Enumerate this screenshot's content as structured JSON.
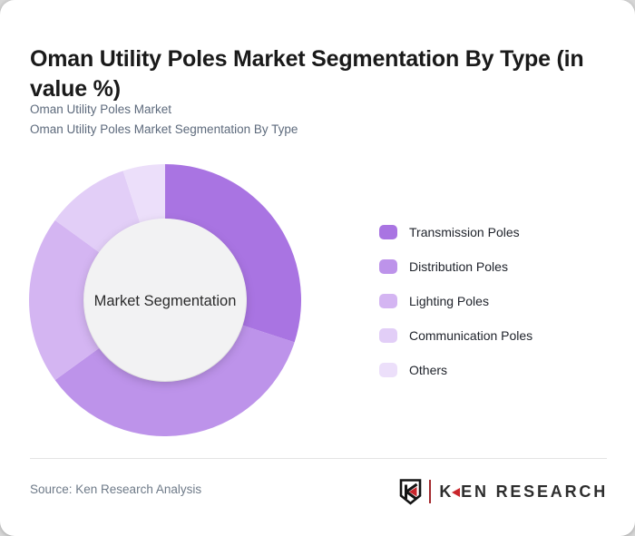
{
  "page": {
    "background_color": "#d7d7d7",
    "card_color": "#ffffff"
  },
  "header": {
    "title": "Oman Utility Poles Market Segmentation By Type (in value %)",
    "subtitle_line1": "Oman Utility Poles Market",
    "subtitle_line2": "Oman Utility Poles Market Segmentation By Type"
  },
  "chart_data": {
    "type": "pie",
    "subtype": "donut",
    "title": "Oman Utility Poles Market Segmentation By Type (in value %)",
    "center_label": "Market Segmentation",
    "units": "value %",
    "start_angle_deg": 0,
    "direction": "clockwise",
    "legend_position": "right",
    "inner_radius_ratio": 0.6,
    "center_fill": "#f2f2f3",
    "segments": [
      {
        "label": "Transmission Poles",
        "value": 30,
        "color": "#a974e2"
      },
      {
        "label": "Distribution Poles",
        "value": 35,
        "color": "#bd93ea"
      },
      {
        "label": "Lighting Poles",
        "value": 20,
        "color": "#d4b5f2"
      },
      {
        "label": "Communication Poles",
        "value": 10,
        "color": "#e2cef7"
      },
      {
        "label": "Others",
        "value": 5,
        "color": "#ecdffa"
      }
    ]
  },
  "footer": {
    "source": "Source: Ken Research Analysis",
    "logo": {
      "emblem_icon": "shield-k-icon",
      "word_first": "K",
      "word_rest": "EN RESEARCH",
      "accent_color": "#c9252b",
      "text_color": "#2d2d2d"
    }
  }
}
